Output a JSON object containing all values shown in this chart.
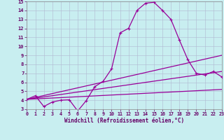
{
  "xlabel": "Windchill (Refroidissement éolien,°C)",
  "bg_color": "#c8eef0",
  "grid_color": "#b0b8d0",
  "line_color": "#990099",
  "xmin": 0,
  "xmax": 23,
  "ymin": 3,
  "ymax": 15,
  "yticks": [
    3,
    4,
    5,
    6,
    7,
    8,
    9,
    10,
    11,
    12,
    13,
    14,
    15
  ],
  "xticks": [
    0,
    1,
    2,
    3,
    4,
    5,
    6,
    7,
    8,
    9,
    10,
    11,
    12,
    13,
    14,
    15,
    16,
    17,
    18,
    19,
    20,
    21,
    22,
    23
  ],
  "line1_x": [
    0,
    1,
    2,
    3,
    4,
    5,
    6,
    7,
    8,
    9,
    10,
    11,
    12,
    13,
    14,
    15,
    16,
    17,
    18,
    19,
    20,
    21,
    22,
    23
  ],
  "line1_y": [
    4.1,
    4.5,
    3.3,
    3.8,
    4.0,
    4.05,
    2.8,
    3.95,
    5.5,
    6.1,
    7.5,
    11.5,
    12.0,
    14.0,
    14.8,
    14.9,
    14.0,
    13.0,
    10.7,
    8.5,
    7.0,
    6.8,
    7.2,
    6.6
  ],
  "line2_x": [
    0,
    23
  ],
  "line2_y": [
    4.1,
    9.0
  ],
  "line3_x": [
    0,
    23
  ],
  "line3_y": [
    4.1,
    7.2
  ],
  "line4_x": [
    0,
    23
  ],
  "line4_y": [
    4.1,
    5.2
  ]
}
